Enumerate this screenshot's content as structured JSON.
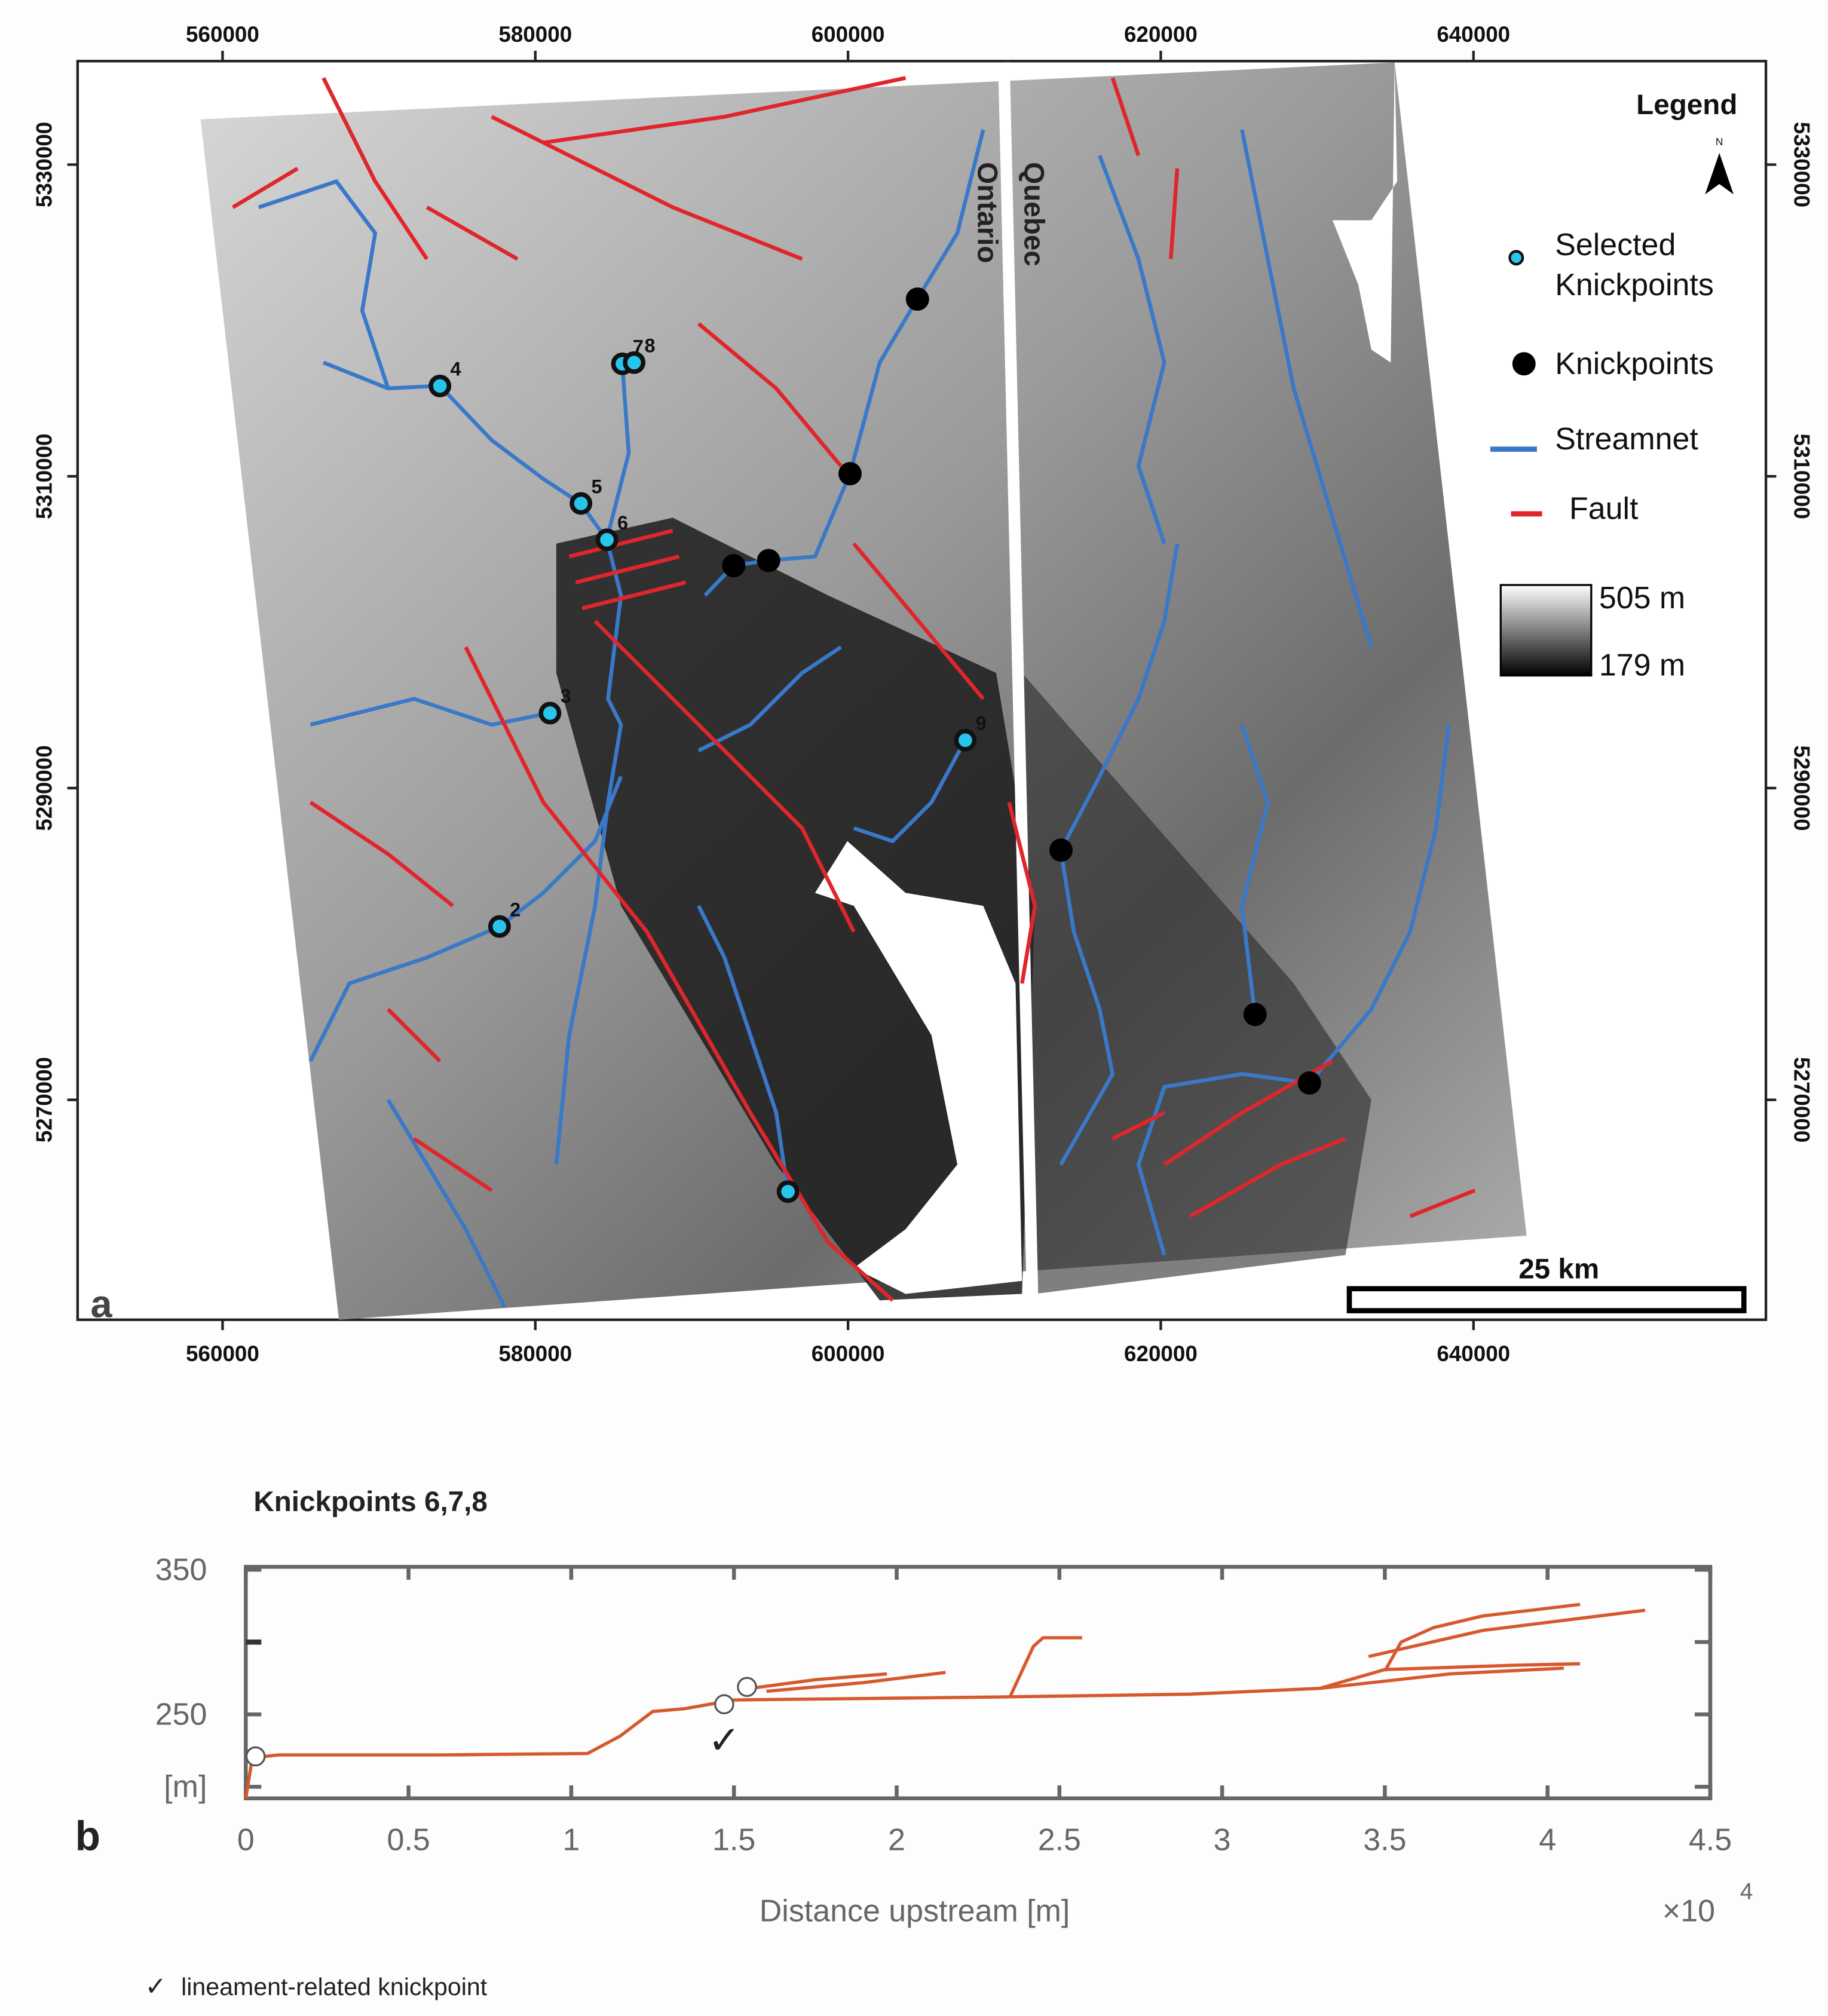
{
  "map": {
    "panel_label": "a",
    "xlim": [
      550730,
      658700
    ],
    "ylim": [
      5255890,
      5336640
    ],
    "xticks": [
      560000,
      580000,
      600000,
      620000,
      640000
    ],
    "yticks": [
      5270000,
      5290000,
      5310000,
      5330000
    ],
    "regions": [
      "Ontario",
      "Quebec"
    ],
    "scale_bar": "25 km",
    "north": "N",
    "legend": {
      "title": "Legend",
      "items": [
        {
          "name": [
            "Selected",
            "Knickpoints"
          ],
          "color": "#29c4ea"
        },
        {
          "name": [
            "Knickpoints"
          ],
          "color": "#000000"
        },
        {
          "name": [
            "Streamnet"
          ],
          "color": "#3a78c8"
        },
        {
          "name": [
            "Fault"
          ],
          "color": "#e0262b"
        }
      ],
      "elevation": [
        {
          "value": 505,
          "label": "505 m"
        },
        {
          "value": 179,
          "label": "179 m"
        }
      ]
    },
    "selected_knickpoints": [
      {
        "label": "4",
        "x": 573900,
        "y": 5315800
      },
      {
        "label": "7",
        "x": 585570,
        "y": 5317220
      },
      {
        "label": "8",
        "x": 586320,
        "y": 5317300
      },
      {
        "label": "5",
        "x": 582920,
        "y": 5308260
      },
      {
        "label": "6",
        "x": 584580,
        "y": 5305930
      },
      {
        "label": "3",
        "x": 580940,
        "y": 5294810
      },
      {
        "label": "9",
        "x": 607500,
        "y": 5293070
      },
      {
        "label": "2",
        "x": 577710,
        "y": 5281120
      },
      {
        "x": 596160,
        "y": 5264110
      }
    ],
    "knickpoints": [
      {
        "x": 604440,
        "y": 5321370
      },
      {
        "x": 600130,
        "y": 5310170
      },
      {
        "x": 592690,
        "y": 5304270
      },
      {
        "x": 594920,
        "y": 5304600
      },
      {
        "x": 613620,
        "y": 5286020
      },
      {
        "x": 626030,
        "y": 5275480
      },
      {
        "x": 629510,
        "y": 5271080
      }
    ]
  },
  "chart_data": {
    "type": "line",
    "panel_label": "b",
    "title": "Knickpoints 6,7,8",
    "x_label": "Distance upstream [m]",
    "x_multiplier": {
      "label": "×10",
      "exponent": "4"
    },
    "xlim": [
      0,
      4.5
    ],
    "xticks": [
      0,
      0.5,
      1,
      1.5,
      2,
      2.5,
      3,
      3.5,
      4,
      4.5
    ],
    "ylim": [
      192,
      352
    ],
    "yticks": [
      {
        "value": 200,
        "label": "[m]"
      },
      250,
      350
    ],
    "y_minor_ticks": [
      300
    ],
    "color": "#d6582c",
    "series": [
      {
        "x": [
          0,
          0.02,
          0.1,
          0.6,
          1.05,
          1.15,
          1.25,
          1.35,
          1.5,
          2.3,
          2.9,
          3.3,
          3.5,
          3.9,
          4.1
        ],
        "values": [
          192,
          220,
          222,
          222,
          223,
          235,
          252,
          254,
          260,
          262,
          264,
          268,
          281,
          284,
          285
        ]
      },
      {
        "x": [
          1.55,
          1.75,
          1.97
        ],
        "values": [
          268,
          274,
          278
        ]
      },
      {
        "x": [
          1.6,
          1.9,
          2.15
        ],
        "values": [
          266,
          272,
          279
        ]
      },
      {
        "x": [
          2.35,
          2.42,
          2.45,
          2.57
        ],
        "values": [
          263,
          297,
          303,
          303
        ]
      },
      {
        "x": [
          3.5,
          3.55,
          3.65,
          3.8,
          4.1
        ],
        "values": [
          280,
          300,
          310,
          318,
          326
        ]
      },
      {
        "x": [
          3.45,
          3.8,
          4.3
        ],
        "values": [
          290,
          308,
          322
        ]
      },
      {
        "x": [
          3.3,
          3.7,
          4.05
        ],
        "values": [
          268,
          278,
          282
        ]
      }
    ],
    "knickpoints": {
      "x": [
        0.03,
        1.47,
        1.54
      ],
      "values": [
        221,
        257,
        269
      ]
    },
    "annotation": {
      "symbol": "✓",
      "x": 1.47,
      "y": 232
    },
    "note": "lineament-related knickpoint"
  }
}
